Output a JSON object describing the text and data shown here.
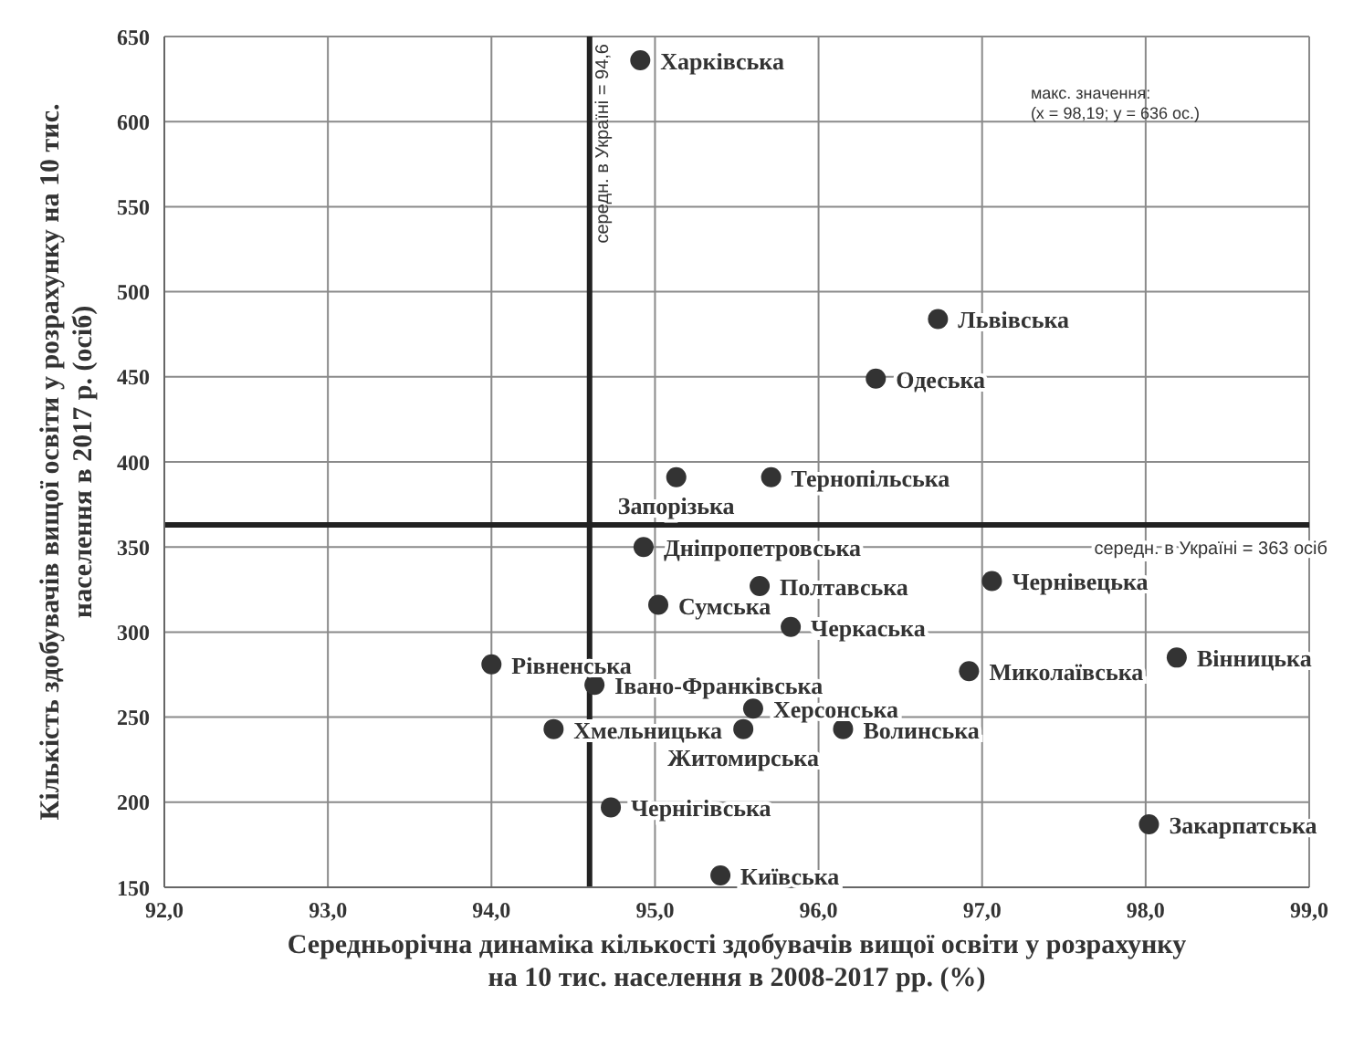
{
  "chart_data": {
    "type": "scatter",
    "xlabel": "Середньорічна динаміка кількості здобувачів вищої освіти у розрахунку на 10 тис. населення в 2008-2017 рр. (%)",
    "ylabel": "Кількість здобувачів вищої освіти у розрахунку на 10 тис. населення в 2017 р. (осіб)",
    "x": [
      94.91,
      96.73,
      96.35,
      95.13,
      95.71,
      94.93,
      95.64,
      95.02,
      95.83,
      97.06,
      94.0,
      96.92,
      98.19,
      94.63,
      95.6,
      94.38,
      95.54,
      96.15,
      94.73,
      98.02,
      95.4
    ],
    "values": [
      636,
      484,
      449,
      391,
      391,
      350,
      327,
      316,
      303,
      330,
      281,
      277,
      285,
      269,
      255,
      243,
      243,
      243,
      197,
      187,
      157
    ],
    "color": "#333333",
    "marker": "circle",
    "xlim": [
      92,
      99
    ],
    "xticks": [
      {
        "value": 92,
        "label": "92,0"
      },
      {
        "value": 93,
        "label": "93,0"
      },
      {
        "value": 94,
        "label": "94,0"
      },
      {
        "value": 95,
        "label": "95,0"
      },
      {
        "value": 96,
        "label": "96,0"
      },
      {
        "value": 97,
        "label": "97,0"
      },
      {
        "value": 98,
        "label": "98,0"
      },
      {
        "value": 99,
        "label": "99,0"
      }
    ],
    "ylim": [
      150,
      650
    ],
    "yticks": [
      150,
      200,
      250,
      300,
      350,
      400,
      450,
      500,
      550,
      600,
      650
    ],
    "grid": true,
    "ref_lines": [
      {
        "axis": "x",
        "value": 94.6,
        "label": "середн. в Україні = 94,6",
        "color": "#222222"
      },
      {
        "axis": "y",
        "value": 363,
        "label": "середн. в Україні = 363 осіб",
        "color": "#222222"
      }
    ],
    "annotations": [
      {
        "text": "Харківська",
        "x": 94.91,
        "y": 636
      },
      {
        "text": "Львівська",
        "x": 96.73,
        "y": 484
      },
      {
        "text": "Одеська",
        "x": 96.35,
        "y": 449
      },
      {
        "text": "Запорізька",
        "x": 95.13,
        "y": 391
      },
      {
        "text": "Тернопільська",
        "x": 95.71,
        "y": 391
      },
      {
        "text": "Дніпропетровська",
        "x": 94.93,
        "y": 350
      },
      {
        "text": "Полтавська",
        "x": 95.64,
        "y": 327
      },
      {
        "text": "Сумська",
        "x": 95.02,
        "y": 316
      },
      {
        "text": "Черкаська",
        "x": 95.83,
        "y": 303
      },
      {
        "text": "Чернівецька",
        "x": 97.06,
        "y": 330
      },
      {
        "text": "Рівненська",
        "x": 94.0,
        "y": 281
      },
      {
        "text": "Миколаївська",
        "x": 96.92,
        "y": 277
      },
      {
        "text": "Вінницька",
        "x": 98.19,
        "y": 285
      },
      {
        "text": "Івано-Франківська",
        "x": 94.63,
        "y": 269
      },
      {
        "text": "Херсонська",
        "x": 95.6,
        "y": 255
      },
      {
        "text": "Хмельницька",
        "x": 94.38,
        "y": 243
      },
      {
        "text": "Житомирська",
        "x": 95.54,
        "y": 243
      },
      {
        "text": "Волинська",
        "x": 96.15,
        "y": 243
      },
      {
        "text": "Чернігівська",
        "x": 94.73,
        "y": 197
      },
      {
        "text": "Закарпатська",
        "x": 98.02,
        "y": 187
      },
      {
        "text": "Київська",
        "x": 95.4,
        "y": 157
      },
      "макс. значення:\n(x = 98,19; y = 636 ос.)"
    ]
  }
}
